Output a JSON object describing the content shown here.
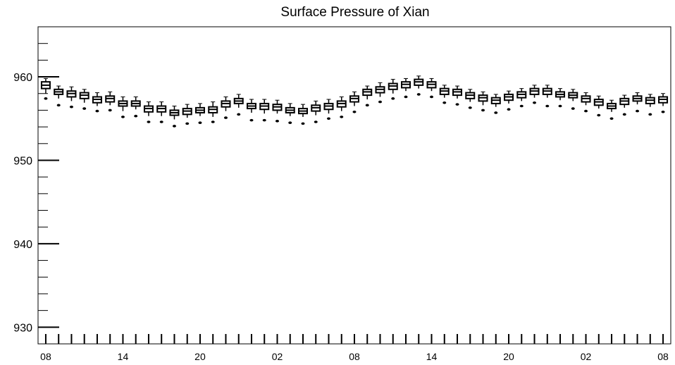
{
  "chart_data": {
    "type": "box",
    "title": "Surface Pressure of Xian",
    "xlabel": "",
    "ylabel": "",
    "ylim": [
      928,
      966
    ],
    "y_ticks": [
      930,
      940,
      950,
      960
    ],
    "x_tick_labels": [
      "08",
      "14",
      "20",
      "02",
      "08",
      "14",
      "20",
      "02",
      "08"
    ],
    "x_tick_hours": [
      0,
      6,
      12,
      18,
      24,
      30,
      36,
      42,
      48
    ],
    "x_range_hours": [
      -0.6,
      48.6
    ],
    "grid": false,
    "legend": "none",
    "series": [
      {
        "x_hours": [
          0,
          1,
          2,
          3,
          4,
          5,
          6,
          7,
          8,
          9,
          10,
          11,
          12,
          13,
          14,
          15,
          16,
          17,
          18,
          19,
          20,
          21,
          22,
          23,
          24,
          25,
          26,
          27,
          28,
          29,
          30,
          31,
          32,
          33,
          34,
          35,
          36,
          37,
          38,
          39,
          40,
          41,
          42,
          43,
          44,
          45,
          46,
          47,
          48
        ],
        "median": [
          959.0,
          958.2,
          958.0,
          957.8,
          957.3,
          957.4,
          956.8,
          956.8,
          956.2,
          956.2,
          955.7,
          955.9,
          956.0,
          956.1,
          956.8,
          957.1,
          956.5,
          956.5,
          956.4,
          956.0,
          955.9,
          956.3,
          956.5,
          956.8,
          957.4,
          958.2,
          958.5,
          958.9,
          959.1,
          959.4,
          959.1,
          958.3,
          958.2,
          957.8,
          957.5,
          957.2,
          957.6,
          957.9,
          958.3,
          958.3,
          957.9,
          957.8,
          957.4,
          957.0,
          956.5,
          957.1,
          957.4,
          957.2,
          957.3
        ],
        "q1": [
          958.6,
          957.9,
          957.6,
          957.4,
          956.9,
          957.0,
          956.5,
          956.5,
          955.8,
          955.8,
          955.4,
          955.5,
          955.7,
          955.7,
          956.4,
          956.8,
          956.2,
          956.1,
          956.0,
          955.7,
          955.6,
          955.9,
          956.1,
          956.4,
          957.0,
          957.8,
          958.1,
          958.5,
          958.7,
          959.0,
          958.7,
          957.9,
          957.8,
          957.4,
          957.1,
          956.8,
          957.2,
          957.5,
          957.9,
          957.9,
          957.6,
          957.5,
          957.0,
          956.6,
          956.2,
          956.7,
          957.1,
          956.8,
          956.9
        ],
        "q3": [
          959.4,
          958.5,
          958.3,
          958.1,
          957.6,
          957.7,
          957.1,
          957.1,
          956.5,
          956.5,
          956.0,
          956.2,
          956.3,
          956.4,
          957.1,
          957.4,
          956.8,
          956.8,
          956.7,
          956.3,
          956.2,
          956.6,
          956.8,
          957.1,
          957.7,
          958.5,
          958.8,
          959.2,
          959.4,
          959.7,
          959.4,
          958.6,
          958.5,
          958.1,
          957.8,
          957.5,
          957.9,
          958.2,
          958.6,
          958.6,
          958.2,
          958.1,
          957.7,
          957.3,
          956.8,
          957.4,
          957.7,
          957.5,
          957.6
        ],
        "whisker_low": [
          958.0,
          957.4,
          957.1,
          956.9,
          956.5,
          956.6,
          955.9,
          956.1,
          955.3,
          955.3,
          954.9,
          955.1,
          955.3,
          955.2,
          955.9,
          956.3,
          955.7,
          955.6,
          955.6,
          955.3,
          955.2,
          955.4,
          955.6,
          955.9,
          956.5,
          957.3,
          957.6,
          958.0,
          958.3,
          958.6,
          958.3,
          957.5,
          957.4,
          957.0,
          956.6,
          956.4,
          956.8,
          957.1,
          957.5,
          957.5,
          957.2,
          957.1,
          956.6,
          956.2,
          955.8,
          956.3,
          956.7,
          956.4,
          956.5
        ],
        "whisker_high": [
          959.8,
          958.9,
          958.8,
          958.5,
          958.1,
          958.2,
          957.6,
          957.6,
          957.0,
          957.0,
          956.5,
          956.7,
          956.8,
          957.0,
          957.6,
          957.9,
          957.3,
          957.3,
          957.2,
          956.8,
          956.7,
          957.1,
          957.3,
          957.6,
          958.2,
          958.9,
          959.3,
          959.7,
          959.8,
          960.1,
          959.8,
          959.0,
          958.9,
          958.5,
          958.2,
          957.9,
          958.3,
          958.6,
          959.0,
          959.0,
          958.6,
          958.5,
          958.1,
          957.7,
          957.2,
          957.8,
          958.1,
          957.9,
          958.0
        ],
        "outliers": [
          957.4,
          956.6,
          956.4,
          956.2,
          955.9,
          956.0,
          955.2,
          955.3,
          954.6,
          954.6,
          954.1,
          954.4,
          954.5,
          954.6,
          955.1,
          955.5,
          954.8,
          954.8,
          954.7,
          954.5,
          954.4,
          954.6,
          955.0,
          955.2,
          955.8,
          956.6,
          957.0,
          957.4,
          957.6,
          957.9,
          957.6,
          956.9,
          956.7,
          956.3,
          956.0,
          955.7,
          956.1,
          956.5,
          956.9,
          956.5,
          956.5,
          956.2,
          955.9,
          955.4,
          955.0,
          955.5,
          955.9,
          955.5,
          955.8
        ]
      }
    ]
  }
}
